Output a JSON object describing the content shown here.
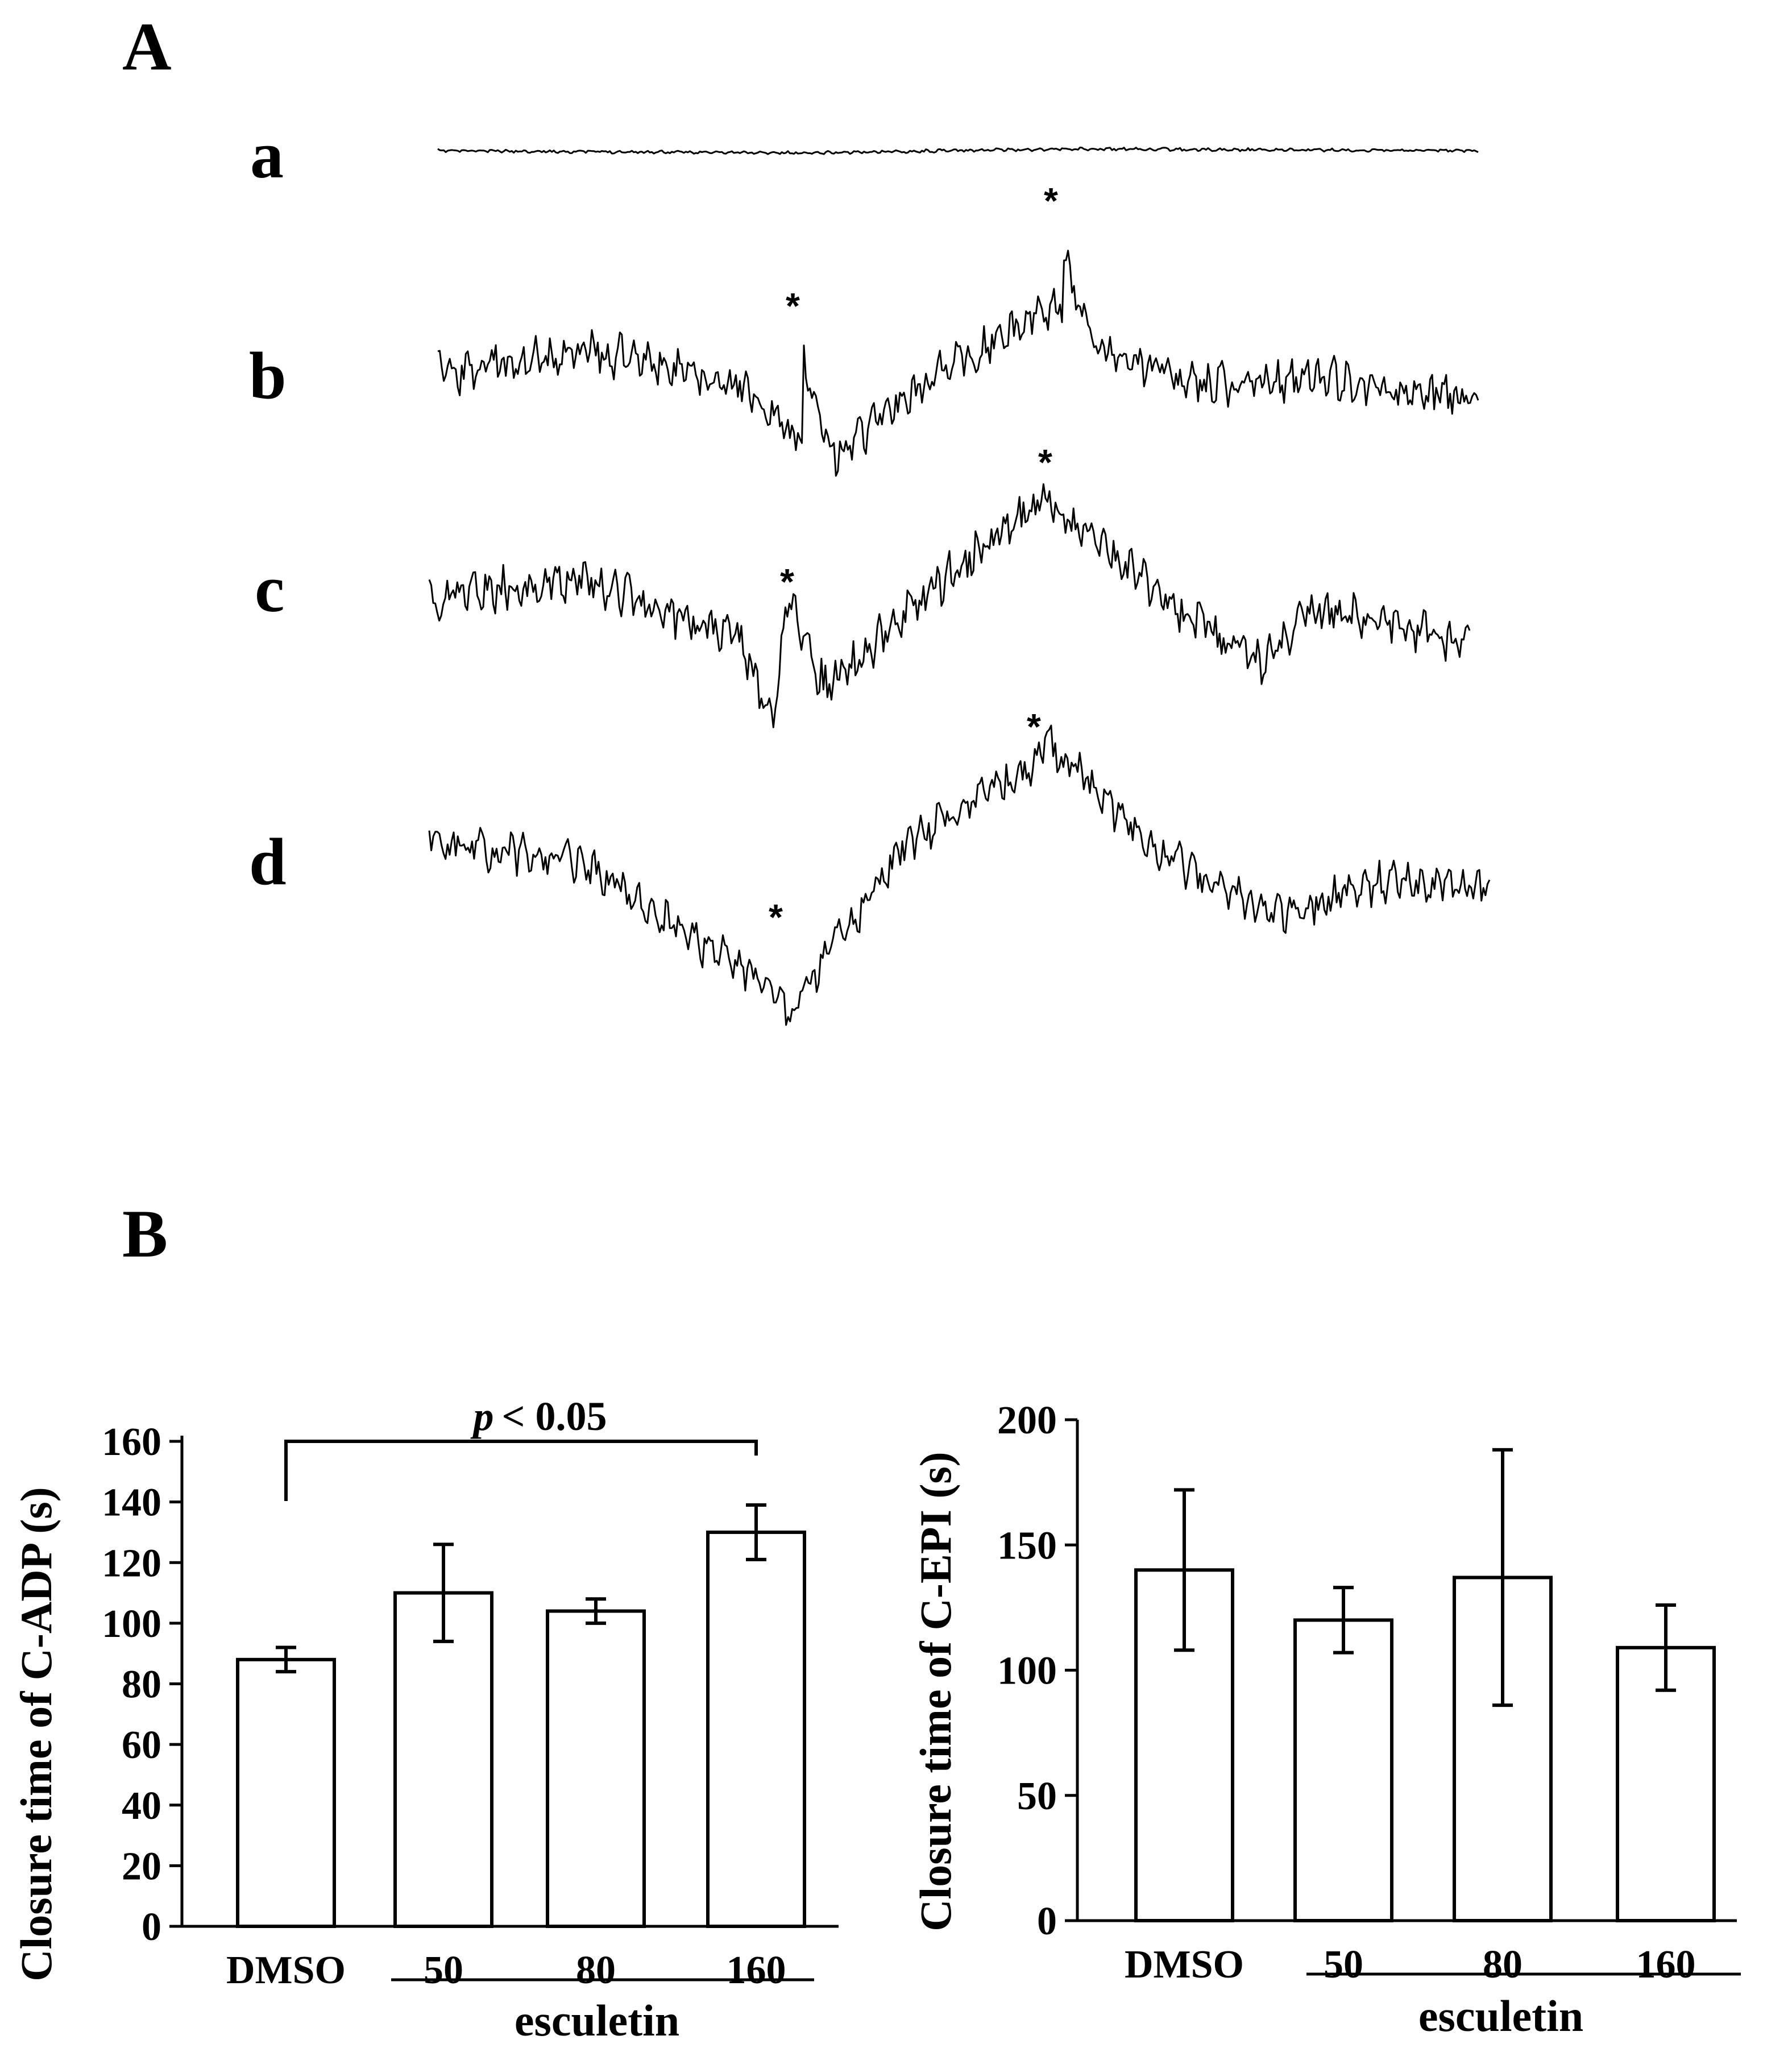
{
  "panel_a": {
    "label": "A",
    "traces": [
      {
        "label": "a",
        "peaks": []
      },
      {
        "label": "b",
        "peaks": [
          "*",
          "*"
        ]
      },
      {
        "label": "c",
        "peaks": [
          "*",
          "*"
        ]
      },
      {
        "label": "d",
        "peaks": [
          "*",
          "*"
        ]
      }
    ]
  },
  "panel_b": {
    "label": "B"
  },
  "chart_data": [
    {
      "type": "bar",
      "ylabel": "Closure time of C-ADP (s)",
      "categories": [
        "DMSO",
        "50",
        "80",
        "160"
      ],
      "values": [
        88,
        110,
        104,
        130
      ],
      "errors": [
        4,
        16,
        4,
        9
      ],
      "ylim": [
        0,
        160
      ],
      "yticks": [
        0,
        20,
        40,
        60,
        80,
        100,
        120,
        140,
        160
      ],
      "group_label": "esculetin",
      "significance": {
        "text_italic": "p",
        "text": "< 0.05",
        "from": "DMSO",
        "to": "160"
      }
    },
    {
      "type": "bar",
      "ylabel": "Closure time of C-EPI (s)",
      "categories": [
        "DMSO",
        "50",
        "80",
        "160"
      ],
      "values": [
        140,
        120,
        137,
        109
      ],
      "errors": [
        32,
        13,
        51,
        17
      ],
      "ylim": [
        0,
        200
      ],
      "yticks": [
        0,
        50,
        100,
        150,
        200
      ],
      "group_label": "esculetin"
    }
  ]
}
